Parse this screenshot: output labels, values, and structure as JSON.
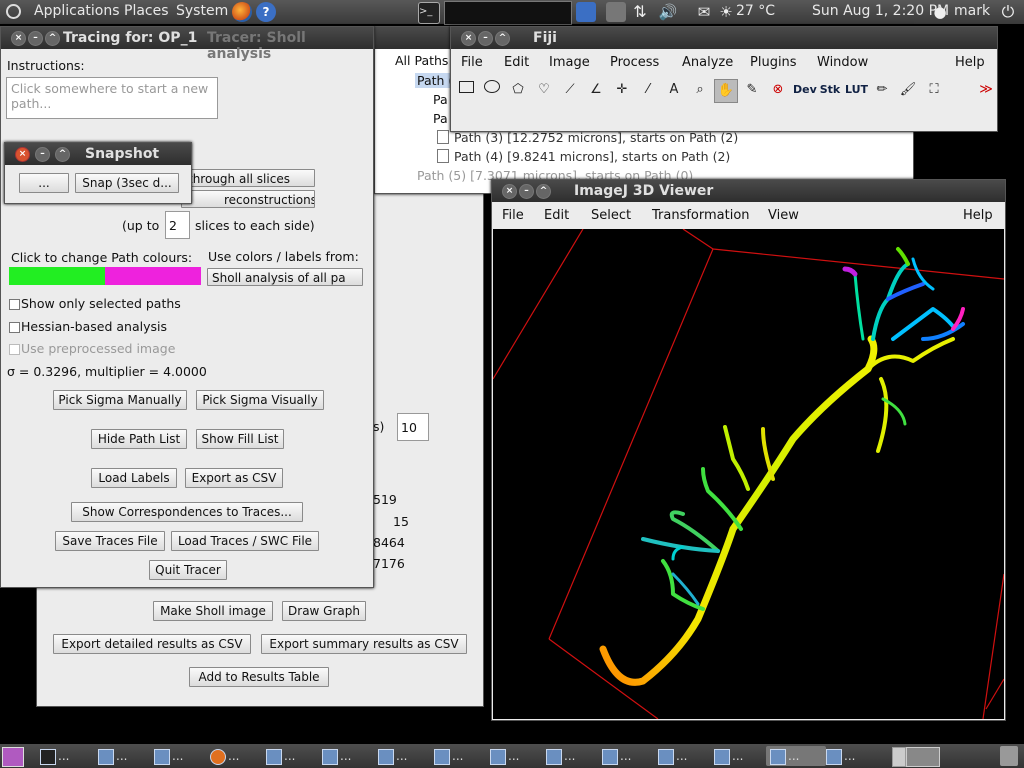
{
  "top_panel": {
    "menus": [
      "Applications",
      "Places",
      "System"
    ],
    "temperature": "27 °C",
    "datetime": "Sun Aug  1,  2:20 PM",
    "user": "mark",
    "icons": [
      "ubuntu-logo-icon",
      "firefox-icon",
      "help-icon",
      "terminal-icon",
      "network-icon",
      "volume-icon",
      "mail-icon",
      "weather-icon",
      "user-icon",
      "power-icon"
    ]
  },
  "tracer": {
    "title": "Tracing for: OP_1",
    "behind_title": "Tracer: Sholl analysis",
    "instructions_label": "Instructions:",
    "instructions_text": "Click somewhere to start a new path...",
    "through_slices": "through all slices",
    "reconstructions": "reconstructions",
    "up_to": "(up to",
    "up_to_value": "2",
    "slices_each_side": "slices to each side)",
    "path_colours_label": "Click to change Path colours:",
    "use_colors_label": "Use colors / labels from:",
    "colors_source": "Sholl analysis of all pa",
    "colour1": "#22ee22",
    "colour2": "#ee22dd",
    "show_selected": "Show only selected paths",
    "hessian": "Hessian-based analysis",
    "preprocessed": "Use preprocessed image",
    "sigma_text": "σ = 0.3296, multiplier = 4.0000",
    "pick_sigma_manually": "Pick Sigma Manually",
    "pick_sigma_visually": "Pick Sigma Visually",
    "hide_path_list": "Hide Path List",
    "show_fill_list": "Show Fill List",
    "load_labels": "Load Labels",
    "export_csv": "Export as CSV",
    "show_correspondences": "Show Correspondences to Traces...",
    "save_traces": "Save Traces File",
    "load_traces": "Load Traces / SWC File",
    "quit_tracer": "Quit Tracer"
  },
  "snapshot": {
    "title": "Snapshot",
    "btn1": "...",
    "btn2": "Snap (3sec d..."
  },
  "sholl": {
    "value_label_suffix": "s)",
    "value": "10",
    "n1": "519",
    "n2": "15",
    "n3": "8464",
    "n4": "7176",
    "make_image": "Make Sholl image",
    "draw_graph": "Draw Graph",
    "export_detailed": "Export detailed results as CSV",
    "export_summary": "Export summary results as CSV",
    "add_results": "Add to Results Table"
  },
  "pathlist": {
    "root": "All Paths",
    "items": [
      "Path (",
      "Pa",
      "Pa",
      "Path (3) [12.2752 microns], starts on Path (2)",
      "Path (4) [9.8241 microns], starts on Path (2)",
      "Path (5) [7.3071 microns], starts on Path (0)"
    ]
  },
  "fiji": {
    "title": "Fiji",
    "menus": [
      "File",
      "Edit",
      "Image",
      "Process",
      "Analyze",
      "Plugins",
      "Window",
      "Help"
    ],
    "tools": [
      "rectangle-tool-icon",
      "oval-tool-icon",
      "polygon-tool-icon",
      "freehand-tool-icon",
      "line-tool-icon",
      "angle-tool-icon",
      "point-tool-icon",
      "wand-tool-icon",
      "text-tool-icon",
      "magnifier-icon",
      "hand-tool-icon",
      "dropper-icon",
      "close-x-icon"
    ],
    "labels": [
      "Dev",
      "Stk",
      "LUT"
    ],
    "more": "≫"
  },
  "viewer": {
    "title": "ImageJ 3D Viewer",
    "menus": [
      "File",
      "Edit",
      "Select",
      "Transformation",
      "View",
      "Help"
    ]
  }
}
